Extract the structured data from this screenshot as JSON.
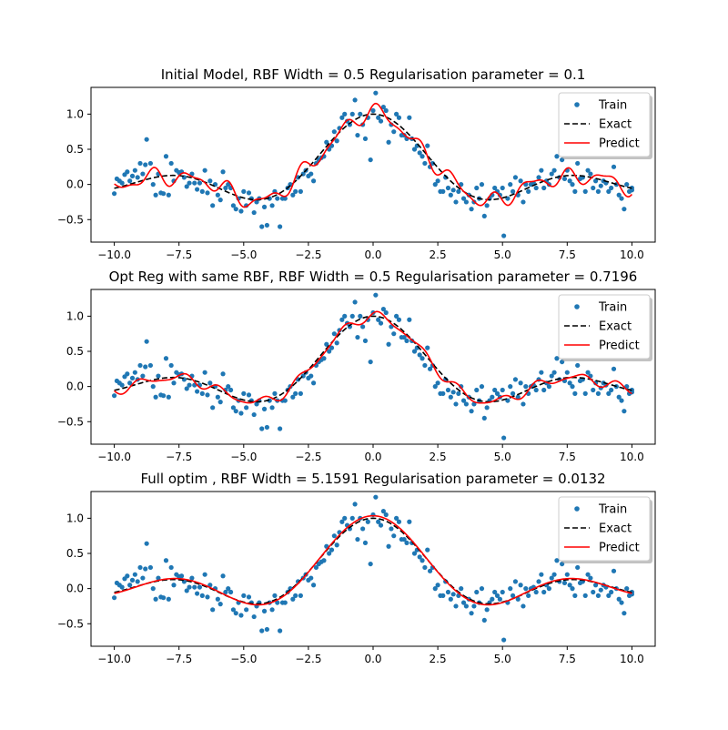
{
  "colors": {
    "train": "#1f77b4",
    "exact": "#000000",
    "predict": "#ff0000"
  },
  "chart_data": [
    {
      "type": "scatter",
      "title": "Initial Model, RBF Width = 0.5  Regularisation parameter = 0.1",
      "xlim": [
        -10.9,
        10.9
      ],
      "ylim": [
        -0.82,
        1.38
      ],
      "xticks": [
        -10.0,
        -7.5,
        -5.0,
        -2.5,
        0.0,
        2.5,
        5.0,
        7.5,
        10.0
      ],
      "xtick_labels": [
        "−10.0",
        "−7.5",
        "−5.0",
        "−2.5",
        "0.0",
        "2.5",
        "5.0",
        "7.5",
        "10.0"
      ],
      "yticks": [
        -0.5,
        0.0,
        0.5,
        1.0
      ],
      "ytick_labels": [
        "−0.5",
        "0.0",
        "0.5",
        "1.0"
      ],
      "legend": {
        "position": "top-right",
        "entries": [
          "Train",
          "Exact",
          "Predict"
        ]
      },
      "grid": false,
      "predict_style": "wiggly-strong"
    },
    {
      "type": "scatter",
      "title": "Opt Reg  with same RBF, RBF Width = 0.5  Regularisation parameter = 0.7196",
      "xlim": [
        -10.9,
        10.9
      ],
      "ylim": [
        -0.82,
        1.38
      ],
      "xticks": [
        -10.0,
        -7.5,
        -5.0,
        -2.5,
        0.0,
        2.5,
        5.0,
        7.5,
        10.0
      ],
      "xtick_labels": [
        "−10.0",
        "−7.5",
        "−5.0",
        "−2.5",
        "0.0",
        "2.5",
        "5.0",
        "7.5",
        "10.0"
      ],
      "yticks": [
        -0.5,
        0.0,
        0.5,
        1.0
      ],
      "ytick_labels": [
        "−0.5",
        "0.0",
        "0.5",
        "1.0"
      ],
      "legend": {
        "position": "top-right",
        "entries": [
          "Train",
          "Exact",
          "Predict"
        ]
      },
      "grid": false,
      "predict_style": "wiggly-mild"
    },
    {
      "type": "scatter",
      "title": "Full optim , RBF Width = 5.1591  Regularisation parameter = 0.0132",
      "xlim": [
        -10.9,
        10.9
      ],
      "ylim": [
        -0.82,
        1.38
      ],
      "xticks": [
        -10.0,
        -7.5,
        -5.0,
        -2.5,
        0.0,
        2.5,
        5.0,
        7.5,
        10.0
      ],
      "xtick_labels": [
        "−10.0",
        "−7.5",
        "−5.0",
        "−2.5",
        "0.0",
        "2.5",
        "5.0",
        "7.5",
        "10.0"
      ],
      "yticks": [
        -0.5,
        0.0,
        0.5,
        1.0
      ],
      "ytick_labels": [
        "−0.5",
        "0.0",
        "0.5",
        "1.0"
      ],
      "legend": {
        "position": "top-right",
        "entries": [
          "Train",
          "Exact",
          "Predict"
        ]
      },
      "grid": false,
      "predict_style": "smooth"
    }
  ],
  "train_points": [
    [
      -10.0,
      -0.13
    ],
    [
      -9.9,
      0.08
    ],
    [
      -9.8,
      0.05
    ],
    [
      -9.7,
      0.02
    ],
    [
      -9.6,
      0.14
    ],
    [
      -9.5,
      0.18
    ],
    [
      -9.4,
      0.05
    ],
    [
      -9.3,
      0.12
    ],
    [
      -9.2,
      0.2
    ],
    [
      -9.1,
      0.1
    ],
    [
      -9.0,
      0.3
    ],
    [
      -8.9,
      0.15
    ],
    [
      -8.8,
      0.28
    ],
    [
      -8.75,
      0.64
    ],
    [
      -8.6,
      0.3
    ],
    [
      -8.5,
      0.0
    ],
    [
      -8.4,
      -0.15
    ],
    [
      -8.3,
      0.15
    ],
    [
      -8.2,
      -0.12
    ],
    [
      -8.1,
      -0.13
    ],
    [
      -8.0,
      0.4
    ],
    [
      -7.9,
      -0.15
    ],
    [
      -7.8,
      0.3
    ],
    [
      -7.7,
      0.05
    ],
    [
      -7.6,
      0.2
    ],
    [
      -7.5,
      0.17
    ],
    [
      -7.4,
      0.18
    ],
    [
      -7.3,
      0.1
    ],
    [
      -7.2,
      -0.03
    ],
    [
      -7.1,
      0.02
    ],
    [
      -7.0,
      0.15
    ],
    [
      -6.9,
      0.02
    ],
    [
      -6.8,
      -0.07
    ],
    [
      -6.7,
      0.02
    ],
    [
      -6.6,
      -0.1
    ],
    [
      -6.5,
      0.2
    ],
    [
      -6.4,
      -0.12
    ],
    [
      -6.3,
      0.05
    ],
    [
      -6.2,
      -0.3
    ],
    [
      -6.1,
      0.0
    ],
    [
      -6.0,
      -0.15
    ],
    [
      -5.9,
      -0.22
    ],
    [
      -5.8,
      0.18
    ],
    [
      -5.7,
      -0.05
    ],
    [
      -5.6,
      0.0
    ],
    [
      -5.5,
      -0.05
    ],
    [
      -5.4,
      -0.3
    ],
    [
      -5.3,
      -0.35
    ],
    [
      -5.2,
      -0.2
    ],
    [
      -5.1,
      -0.38
    ],
    [
      -5.0,
      -0.1
    ],
    [
      -4.9,
      -0.3
    ],
    [
      -4.8,
      -0.12
    ],
    [
      -4.7,
      -0.2
    ],
    [
      -4.6,
      -0.4
    ],
    [
      -4.5,
      -0.25
    ],
    [
      -4.4,
      -0.2
    ],
    [
      -4.3,
      -0.6
    ],
    [
      -4.2,
      -0.32
    ],
    [
      -4.1,
      -0.58
    ],
    [
      -4.0,
      -0.2
    ],
    [
      -3.9,
      -0.3
    ],
    [
      -3.8,
      -0.1
    ],
    [
      -3.7,
      -0.2
    ],
    [
      -3.6,
      -0.6
    ],
    [
      -3.5,
      -0.2
    ],
    [
      -3.4,
      -0.2
    ],
    [
      -3.3,
      -0.05
    ],
    [
      -3.2,
      0.0
    ],
    [
      -3.1,
      -0.15
    ],
    [
      -3.0,
      -0.1
    ],
    [
      -2.9,
      0.1
    ],
    [
      -2.8,
      -0.1
    ],
    [
      -2.7,
      0.15
    ],
    [
      -2.6,
      0.2
    ],
    [
      -2.5,
      0.12
    ],
    [
      -2.4,
      0.15
    ],
    [
      -2.3,
      0.05
    ],
    [
      -2.2,
      0.3
    ],
    [
      -2.1,
      0.35
    ],
    [
      -2.0,
      0.38
    ],
    [
      -1.9,
      0.4
    ],
    [
      -1.8,
      0.6
    ],
    [
      -1.7,
      0.5
    ],
    [
      -1.6,
      0.55
    ],
    [
      -1.5,
      0.75
    ],
    [
      -1.4,
      0.62
    ],
    [
      -1.3,
      0.8
    ],
    [
      -1.2,
      0.95
    ],
    [
      -1.1,
      1.0
    ],
    [
      -1.0,
      0.9
    ],
    [
      -0.9,
      0.85
    ],
    [
      -0.8,
      1.0
    ],
    [
      -0.7,
      1.2
    ],
    [
      -0.6,
      0.7
    ],
    [
      -0.5,
      1.0
    ],
    [
      -0.4,
      0.85
    ],
    [
      -0.3,
      0.65
    ],
    [
      -0.2,
      0.95
    ],
    [
      -0.1,
      0.35
    ],
    [
      0.0,
      1.05
    ],
    [
      0.1,
      1.3
    ],
    [
      0.2,
      0.95
    ],
    [
      0.3,
      0.9
    ],
    [
      0.4,
      1.1
    ],
    [
      0.5,
      1.05
    ],
    [
      0.6,
      0.6
    ],
    [
      0.7,
      0.85
    ],
    [
      0.8,
      0.75
    ],
    [
      0.9,
      1.0
    ],
    [
      1.0,
      0.95
    ],
    [
      1.1,
      0.7
    ],
    [
      1.2,
      0.7
    ],
    [
      1.3,
      0.65
    ],
    [
      1.4,
      0.95
    ],
    [
      1.5,
      0.65
    ],
    [
      1.6,
      0.5
    ],
    [
      1.7,
      0.55
    ],
    [
      1.8,
      0.45
    ],
    [
      1.9,
      0.4
    ],
    [
      2.0,
      0.3
    ],
    [
      2.1,
      0.55
    ],
    [
      2.2,
      0.25
    ],
    [
      2.3,
      0.3
    ],
    [
      2.4,
      0.0
    ],
    [
      2.5,
      0.05
    ],
    [
      2.6,
      -0.1
    ],
    [
      2.7,
      -0.1
    ],
    [
      2.8,
      0.1
    ],
    [
      2.9,
      -0.05
    ],
    [
      3.0,
      -0.15
    ],
    [
      3.1,
      -0.08
    ],
    [
      3.2,
      -0.25
    ],
    [
      3.3,
      -0.1
    ],
    [
      3.4,
      0.0
    ],
    [
      3.5,
      -0.2
    ],
    [
      3.6,
      -0.25
    ],
    [
      3.7,
      -0.15
    ],
    [
      3.8,
      -0.35
    ],
    [
      3.9,
      -0.25
    ],
    [
      4.0,
      -0.05
    ],
    [
      4.1,
      -0.2
    ],
    [
      4.2,
      0.0
    ],
    [
      4.3,
      -0.45
    ],
    [
      4.4,
      -0.3
    ],
    [
      4.5,
      -0.2
    ],
    [
      4.6,
      -0.15
    ],
    [
      4.7,
      -0.05
    ],
    [
      4.8,
      -0.1
    ],
    [
      4.9,
      -0.15
    ],
    [
      5.0,
      -0.05
    ],
    [
      5.05,
      -0.73
    ],
    [
      5.2,
      -0.2
    ],
    [
      5.3,
      0.0
    ],
    [
      5.4,
      -0.1
    ],
    [
      5.5,
      0.1
    ],
    [
      5.6,
      -0.15
    ],
    [
      5.7,
      0.05
    ],
    [
      5.8,
      -0.25
    ],
    [
      5.9,
      0.0
    ],
    [
      6.0,
      -0.1
    ],
    [
      6.1,
      0.0
    ],
    [
      6.2,
      0.02
    ],
    [
      6.3,
      -0.05
    ],
    [
      6.4,
      0.1
    ],
    [
      6.5,
      0.2
    ],
    [
      6.6,
      -0.05
    ],
    [
      6.7,
      0.05
    ],
    [
      6.8,
      0.0
    ],
    [
      6.9,
      0.15
    ],
    [
      7.0,
      0.2
    ],
    [
      7.1,
      0.4
    ],
    [
      7.2,
      0.1
    ],
    [
      7.3,
      0.35
    ],
    [
      7.4,
      0.08
    ],
    [
      7.5,
      0.2
    ],
    [
      7.6,
      0.05
    ],
    [
      7.7,
      0.0
    ],
    [
      7.8,
      -0.1
    ],
    [
      7.9,
      0.3
    ],
    [
      8.0,
      0.08
    ],
    [
      8.1,
      0.1
    ],
    [
      8.2,
      -0.1
    ],
    [
      8.3,
      0.2
    ],
    [
      8.4,
      0.15
    ],
    [
      8.5,
      -0.05
    ],
    [
      8.6,
      0.05
    ],
    [
      8.7,
      -0.1
    ],
    [
      8.8,
      -0.02
    ],
    [
      8.9,
      0.05
    ],
    [
      9.0,
      0.02
    ],
    [
      9.1,
      -0.1
    ],
    [
      9.2,
      -0.05
    ],
    [
      9.3,
      0.25
    ],
    [
      9.4,
      0.0
    ],
    [
      9.5,
      -0.15
    ],
    [
      9.6,
      -0.2
    ],
    [
      9.7,
      -0.35
    ],
    [
      9.8,
      0.0
    ],
    [
      9.9,
      -0.1
    ],
    [
      10.0,
      -0.08
    ],
    [
      10.0,
      -0.05
    ]
  ]
}
